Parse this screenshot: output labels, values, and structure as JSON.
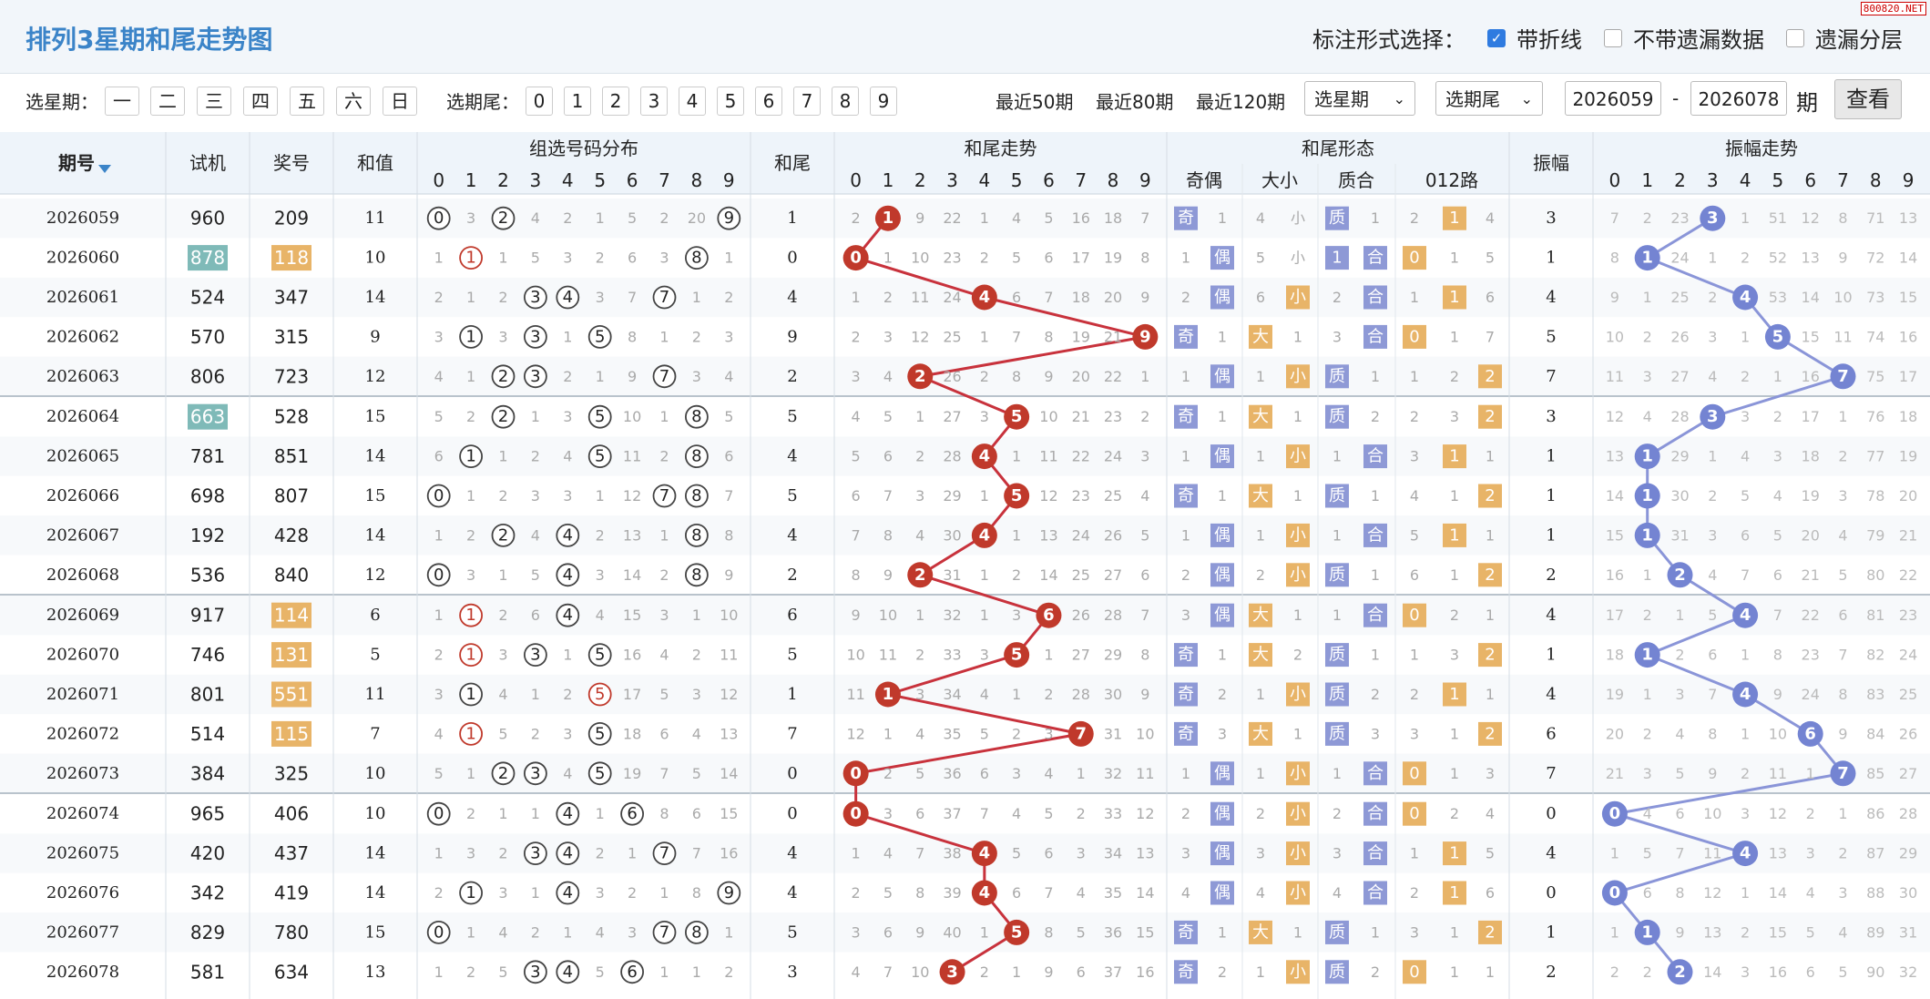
{
  "title": "排列3星期和尾走势图",
  "options": {
    "label": "标注形式选择：",
    "items": [
      {
        "label": "带折线",
        "checked": true
      },
      {
        "label": "不带遗漏数据",
        "checked": false
      },
      {
        "label": "遗漏分层",
        "checked": false
      }
    ]
  },
  "watermark": "800820.NET",
  "filter": {
    "week_label": "选星期：",
    "week_days": [
      "一",
      "二",
      "三",
      "四",
      "五",
      "六",
      "日"
    ],
    "tail_label": "选期尾：",
    "tails": [
      "0",
      "1",
      "2",
      "3",
      "4",
      "5",
      "6",
      "7",
      "8",
      "9"
    ],
    "recent": [
      "最近50期",
      "最近80期",
      "最近120期"
    ],
    "select_week": "选星期",
    "select_tail": "选期尾",
    "from": "2026059",
    "dash": "-",
    "to": "2026078",
    "period": "期",
    "view": "查看"
  },
  "columns": {
    "issue": "期号",
    "sort_icon": "triangle-down-icon",
    "trial": "试机",
    "prize": "奖号",
    "sum": "和值",
    "dist": "组选号码分布",
    "tail": "和尾",
    "trend": "和尾走势",
    "form": "和尾形态",
    "parity": "奇偶",
    "size": "大小",
    "prime": "质合",
    "route": "012路",
    "amp": "振幅",
    "amp_trend": "振幅走势",
    "digits": [
      "0",
      "1",
      "2",
      "3",
      "4",
      "5",
      "6",
      "7",
      "8",
      "9"
    ]
  },
  "colors": {
    "header_bg": "#eef4fa",
    "row_alt": "#f7f9fb",
    "trend_ball": "#c0392b",
    "trend_line": "#c8323c",
    "amp_ball": "#7484d2",
    "amp_line": "#8a95d8",
    "form_blue": "#8e99d6",
    "form_orange": "#e8b468",
    "highlight_teal": "#7fbab8",
    "highlight_orange": "#e8b468",
    "dist_red": "#c0392b"
  },
  "rows": [
    {
      "issue": "2026059",
      "trial": "960",
      "prize": "209",
      "sum": "11",
      "dist": [
        "0",
        "3",
        "2",
        "4",
        "2",
        "1",
        "5",
        "2",
        "20",
        "9"
      ],
      "tail": "1",
      "trend": [
        "2",
        "1",
        "9",
        "22",
        "1",
        "4",
        "5",
        "16",
        "18",
        "7"
      ],
      "form": [
        "奇",
        "1",
        "4",
        "小",
        "质",
        "1",
        "2",
        "1",
        "4"
      ],
      "amp": "3",
      "amp_trend": [
        "7",
        "2",
        "23",
        "3",
        "1",
        "51",
        "12",
        "8",
        "71",
        "13"
      ]
    },
    {
      "issue": "2026060",
      "trial": "878",
      "prize": "118",
      "sum": "10",
      "dist": [
        "1",
        "1",
        "1",
        "5",
        "3",
        "2",
        "6",
        "3",
        "8",
        "1"
      ],
      "tail": "0",
      "trend": [
        "0",
        "1",
        "10",
        "23",
        "2",
        "5",
        "6",
        "17",
        "19",
        "8"
      ],
      "form": [
        "1",
        "偶",
        "5",
        "小",
        "1",
        "合",
        "0",
        "1",
        "5"
      ],
      "amp": "1",
      "amp_trend": [
        "8",
        "1",
        "24",
        "1",
        "2",
        "52",
        "13",
        "9",
        "72",
        "14"
      ]
    },
    {
      "issue": "2026061",
      "trial": "524",
      "prize": "347",
      "sum": "14",
      "dist": [
        "2",
        "1",
        "2",
        "3",
        "4",
        "3",
        "7",
        "7",
        "1",
        "2"
      ],
      "tail": "4",
      "trend": [
        "1",
        "2",
        "11",
        "24",
        "4",
        "6",
        "7",
        "18",
        "20",
        "9"
      ],
      "form": [
        "2",
        "偶",
        "6",
        "小",
        "2",
        "合",
        "1",
        "1",
        "6"
      ],
      "amp": "4",
      "amp_trend": [
        "9",
        "1",
        "25",
        "2",
        "4",
        "53",
        "14",
        "10",
        "73",
        "15"
      ]
    },
    {
      "issue": "2026062",
      "trial": "570",
      "prize": "315",
      "sum": "9",
      "dist": [
        "3",
        "1",
        "3",
        "3",
        "1",
        "5",
        "8",
        "1",
        "2",
        "3"
      ],
      "tail": "9",
      "trend": [
        "2",
        "3",
        "12",
        "25",
        "1",
        "7",
        "8",
        "19",
        "21",
        "9"
      ],
      "form": [
        "奇",
        "1",
        "大",
        "1",
        "3",
        "合",
        "0",
        "1",
        "7"
      ],
      "amp": "5",
      "amp_trend": [
        "10",
        "2",
        "26",
        "3",
        "1",
        "5",
        "15",
        "11",
        "74",
        "16"
      ]
    },
    {
      "issue": "2026063",
      "trial": "806",
      "prize": "723",
      "sum": "12",
      "dist": [
        "4",
        "1",
        "2",
        "3",
        "2",
        "1",
        "9",
        "7",
        "3",
        "4"
      ],
      "tail": "2",
      "trend": [
        "3",
        "4",
        "2",
        "26",
        "2",
        "8",
        "9",
        "20",
        "22",
        "1"
      ],
      "form": [
        "1",
        "偶",
        "1",
        "小",
        "质",
        "1",
        "1",
        "2",
        "2"
      ],
      "amp": "7",
      "amp_trend": [
        "11",
        "3",
        "27",
        "4",
        "2",
        "1",
        "16",
        "7",
        "75",
        "17"
      ]
    },
    {
      "issue": "2026064",
      "trial": "663",
      "prize": "528",
      "sum": "15",
      "dist": [
        "5",
        "2",
        "2",
        "1",
        "3",
        "5",
        "10",
        "1",
        "8",
        "5"
      ],
      "tail": "5",
      "trend": [
        "4",
        "5",
        "1",
        "27",
        "3",
        "5",
        "10",
        "21",
        "23",
        "2"
      ],
      "form": [
        "奇",
        "1",
        "大",
        "1",
        "质",
        "2",
        "2",
        "3",
        "2"
      ],
      "amp": "3",
      "amp_trend": [
        "12",
        "4",
        "28",
        "3",
        "3",
        "2",
        "17",
        "1",
        "76",
        "18"
      ]
    },
    {
      "issue": "2026065",
      "trial": "781",
      "prize": "851",
      "sum": "14",
      "dist": [
        "6",
        "1",
        "1",
        "2",
        "4",
        "5",
        "11",
        "2",
        "8",
        "6"
      ],
      "tail": "4",
      "trend": [
        "5",
        "6",
        "2",
        "28",
        "4",
        "1",
        "11",
        "22",
        "24",
        "3"
      ],
      "form": [
        "1",
        "偶",
        "1",
        "小",
        "1",
        "合",
        "3",
        "1",
        "1"
      ],
      "amp": "1",
      "amp_trend": [
        "13",
        "1",
        "29",
        "1",
        "4",
        "3",
        "18",
        "2",
        "77",
        "19"
      ]
    },
    {
      "issue": "2026066",
      "trial": "698",
      "prize": "807",
      "sum": "15",
      "dist": [
        "0",
        "1",
        "2",
        "3",
        "3",
        "1",
        "12",
        "7",
        "8",
        "7"
      ],
      "tail": "5",
      "trend": [
        "6",
        "7",
        "3",
        "29",
        "1",
        "5",
        "12",
        "23",
        "25",
        "4"
      ],
      "form": [
        "奇",
        "1",
        "大",
        "1",
        "质",
        "1",
        "4",
        "1",
        "2"
      ],
      "amp": "1",
      "amp_trend": [
        "14",
        "1",
        "30",
        "2",
        "5",
        "4",
        "19",
        "3",
        "78",
        "20"
      ]
    },
    {
      "issue": "2026067",
      "trial": "192",
      "prize": "428",
      "sum": "14",
      "dist": [
        "1",
        "2",
        "2",
        "4",
        "4",
        "2",
        "13",
        "1",
        "8",
        "8"
      ],
      "tail": "4",
      "trend": [
        "7",
        "8",
        "4",
        "30",
        "4",
        "1",
        "13",
        "24",
        "26",
        "5"
      ],
      "form": [
        "1",
        "偶",
        "1",
        "小",
        "1",
        "合",
        "5",
        "1",
        "1"
      ],
      "amp": "1",
      "amp_trend": [
        "15",
        "1",
        "31",
        "3",
        "6",
        "5",
        "20",
        "4",
        "79",
        "21"
      ]
    },
    {
      "issue": "2026068",
      "trial": "536",
      "prize": "840",
      "sum": "12",
      "dist": [
        "0",
        "3",
        "1",
        "5",
        "4",
        "3",
        "14",
        "2",
        "8",
        "9"
      ],
      "tail": "2",
      "trend": [
        "8",
        "9",
        "2",
        "31",
        "1",
        "2",
        "14",
        "25",
        "27",
        "6"
      ],
      "form": [
        "2",
        "偶",
        "2",
        "小",
        "质",
        "1",
        "6",
        "1",
        "2"
      ],
      "amp": "2",
      "amp_trend": [
        "16",
        "1",
        "2",
        "4",
        "7",
        "6",
        "21",
        "5",
        "80",
        "22"
      ]
    },
    {
      "issue": "2026069",
      "trial": "917",
      "prize": "114",
      "sum": "6",
      "dist": [
        "1",
        "1",
        "2",
        "6",
        "4",
        "4",
        "15",
        "3",
        "1",
        "10"
      ],
      "tail": "6",
      "trend": [
        "9",
        "10",
        "1",
        "32",
        "1",
        "3",
        "6",
        "26",
        "28",
        "7"
      ],
      "form": [
        "3",
        "偶",
        "大",
        "1",
        "1",
        "合",
        "0",
        "2",
        "1"
      ],
      "amp": "4",
      "amp_trend": [
        "17",
        "2",
        "1",
        "5",
        "4",
        "7",
        "22",
        "6",
        "81",
        "23"
      ]
    },
    {
      "issue": "2026070",
      "trial": "746",
      "prize": "131",
      "sum": "5",
      "dist": [
        "2",
        "1",
        "3",
        "3",
        "1",
        "5",
        "16",
        "4",
        "2",
        "11"
      ],
      "tail": "5",
      "trend": [
        "10",
        "11",
        "2",
        "33",
        "3",
        "5",
        "1",
        "27",
        "29",
        "8"
      ],
      "form": [
        "奇",
        "1",
        "大",
        "2",
        "质",
        "1",
        "1",
        "3",
        "2"
      ],
      "amp": "1",
      "amp_trend": [
        "18",
        "1",
        "2",
        "6",
        "1",
        "8",
        "23",
        "7",
        "82",
        "24"
      ]
    },
    {
      "issue": "2026071",
      "trial": "801",
      "prize": "551",
      "sum": "11",
      "dist": [
        "3",
        "1",
        "4",
        "1",
        "2",
        "5",
        "17",
        "5",
        "3",
        "12"
      ],
      "tail": "1",
      "trend": [
        "11",
        "1",
        "3",
        "34",
        "4",
        "1",
        "2",
        "28",
        "30",
        "9"
      ],
      "form": [
        "奇",
        "2",
        "1",
        "小",
        "质",
        "2",
        "2",
        "1",
        "1"
      ],
      "amp": "4",
      "amp_trend": [
        "19",
        "1",
        "3",
        "7",
        "4",
        "9",
        "24",
        "8",
        "83",
        "25"
      ]
    },
    {
      "issue": "2026072",
      "trial": "514",
      "prize": "115",
      "sum": "7",
      "dist": [
        "4",
        "1",
        "5",
        "2",
        "3",
        "5",
        "18",
        "6",
        "4",
        "13"
      ],
      "tail": "7",
      "trend": [
        "12",
        "1",
        "4",
        "35",
        "5",
        "2",
        "3",
        "7",
        "31",
        "10"
      ],
      "form": [
        "奇",
        "3",
        "大",
        "1",
        "质",
        "3",
        "3",
        "1",
        "2"
      ],
      "amp": "6",
      "amp_trend": [
        "20",
        "2",
        "4",
        "8",
        "1",
        "10",
        "6",
        "9",
        "84",
        "26"
      ]
    },
    {
      "issue": "2026073",
      "trial": "384",
      "prize": "325",
      "sum": "10",
      "dist": [
        "5",
        "1",
        "2",
        "3",
        "4",
        "5",
        "19",
        "7",
        "5",
        "14"
      ],
      "tail": "0",
      "trend": [
        "0",
        "2",
        "5",
        "36",
        "6",
        "3",
        "4",
        "1",
        "32",
        "11"
      ],
      "form": [
        "1",
        "偶",
        "1",
        "小",
        "1",
        "合",
        "0",
        "1",
        "3"
      ],
      "amp": "7",
      "amp_trend": [
        "21",
        "3",
        "5",
        "9",
        "2",
        "11",
        "1",
        "7",
        "85",
        "27"
      ]
    },
    {
      "issue": "2026074",
      "trial": "965",
      "prize": "406",
      "sum": "10",
      "dist": [
        "0",
        "2",
        "1",
        "1",
        "4",
        "1",
        "6",
        "8",
        "6",
        "15"
      ],
      "tail": "0",
      "trend": [
        "0",
        "3",
        "6",
        "37",
        "7",
        "4",
        "5",
        "2",
        "33",
        "12"
      ],
      "form": [
        "2",
        "偶",
        "2",
        "小",
        "2",
        "合",
        "0",
        "2",
        "4"
      ],
      "amp": "0",
      "amp_trend": [
        "0",
        "4",
        "6",
        "10",
        "3",
        "12",
        "2",
        "1",
        "86",
        "28"
      ]
    },
    {
      "issue": "2026075",
      "trial": "420",
      "prize": "437",
      "sum": "14",
      "dist": [
        "1",
        "3",
        "2",
        "3",
        "4",
        "2",
        "1",
        "7",
        "7",
        "16"
      ],
      "tail": "4",
      "trend": [
        "1",
        "4",
        "7",
        "38",
        "4",
        "5",
        "6",
        "3",
        "34",
        "13"
      ],
      "form": [
        "3",
        "偶",
        "3",
        "小",
        "3",
        "合",
        "1",
        "1",
        "5"
      ],
      "amp": "4",
      "amp_trend": [
        "1",
        "5",
        "7",
        "11",
        "4",
        "13",
        "3",
        "2",
        "87",
        "29"
      ]
    },
    {
      "issue": "2026076",
      "trial": "342",
      "prize": "419",
      "sum": "14",
      "dist": [
        "2",
        "1",
        "3",
        "1",
        "4",
        "3",
        "2",
        "1",
        "8",
        "9"
      ],
      "tail": "4",
      "trend": [
        "2",
        "5",
        "8",
        "39",
        "4",
        "6",
        "7",
        "4",
        "35",
        "14"
      ],
      "form": [
        "4",
        "偶",
        "4",
        "小",
        "4",
        "合",
        "2",
        "1",
        "6"
      ],
      "amp": "0",
      "amp_trend": [
        "0",
        "6",
        "8",
        "12",
        "1",
        "14",
        "4",
        "3",
        "88",
        "30"
      ]
    },
    {
      "issue": "2026077",
      "trial": "829",
      "prize": "780",
      "sum": "15",
      "dist": [
        "0",
        "1",
        "4",
        "2",
        "1",
        "4",
        "3",
        "7",
        "8",
        "1"
      ],
      "tail": "5",
      "trend": [
        "3",
        "6",
        "9",
        "40",
        "1",
        "5",
        "8",
        "5",
        "36",
        "15"
      ],
      "form": [
        "奇",
        "1",
        "大",
        "1",
        "质",
        "1",
        "3",
        "1",
        "2"
      ],
      "amp": "1",
      "amp_trend": [
        "1",
        "1",
        "9",
        "13",
        "2",
        "15",
        "5",
        "4",
        "89",
        "31"
      ]
    },
    {
      "issue": "2026078",
      "trial": "581",
      "prize": "634",
      "sum": "13",
      "dist": [
        "1",
        "2",
        "5",
        "3",
        "4",
        "5",
        "6",
        "1",
        "1",
        "2"
      ],
      "tail": "3",
      "trend": [
        "4",
        "7",
        "10",
        "3",
        "2",
        "1",
        "9",
        "6",
        "37",
        "16"
      ],
      "form": [
        "奇",
        "2",
        "1",
        "小",
        "质",
        "2",
        "0",
        "1",
        "1"
      ],
      "amp": "2",
      "amp_trend": [
        "2",
        "2",
        "2",
        "14",
        "3",
        "16",
        "6",
        "5",
        "90",
        "32"
      ]
    }
  ],
  "markers": {
    "dist_circled": [
      [
        0,
        2,
        9
      ],
      [
        1,
        8
      ],
      [
        3,
        4,
        7
      ],
      [
        1,
        3,
        5
      ],
      [
        2,
        3,
        7
      ],
      [
        2,
        5,
        8
      ],
      [
        1,
        5,
        8
      ],
      [
        0,
        7,
        8
      ],
      [
        2,
        4,
        8
      ],
      [
        0,
        4,
        8
      ],
      [
        1,
        4
      ],
      [
        1,
        3,
        5
      ],
      [
        1,
        5
      ],
      [
        1,
        5
      ],
      [
        2,
        3,
        5
      ],
      [
        0,
        4,
        6
      ],
      [
        3,
        4,
        7
      ],
      [
        1,
        4,
        9
      ],
      [
        0,
        7,
        8
      ],
      [
        3,
        4,
        6
      ]
    ],
    "dist_red": [
      [],
      [
        1
      ],
      [],
      [],
      [],
      [],
      [],
      [],
      [],
      [],
      [
        1
      ],
      [
        1
      ],
      [
        5
      ],
      [
        1
      ],
      [],
      [],
      [],
      [],
      [],
      []
    ],
    "form_pos": [
      [
        0,
        4,
        7
      ],
      [
        1,
        4,
        5,
        6
      ],
      [
        1,
        3,
        5,
        7
      ],
      [
        0,
        2,
        5,
        6
      ],
      [
        1,
        3,
        4,
        8
      ],
      [
        0,
        2,
        4,
        8
      ],
      [
        1,
        3,
        5,
        7
      ],
      [
        0,
        2,
        4,
        8
      ],
      [
        1,
        3,
        5,
        7
      ],
      [
        1,
        3,
        4,
        8
      ],
      [
        1,
        2,
        5,
        6
      ],
      [
        0,
        2,
        4,
        8
      ],
      [
        0,
        3,
        4,
        7
      ],
      [
        0,
        2,
        4,
        8
      ],
      [
        1,
        3,
        5,
        6
      ],
      [
        1,
        3,
        5,
        6
      ],
      [
        1,
        3,
        5,
        7
      ],
      [
        1,
        3,
        5,
        7
      ],
      [
        0,
        2,
        4,
        8
      ],
      [
        0,
        3,
        4,
        6
      ]
    ],
    "trial_hl": {
      "1": "teal",
      "5": "teal"
    },
    "prize_hl": {
      "1": "orange",
      "10": "orange",
      "11": "orange",
      "12": "orange",
      "13": "orange"
    }
  }
}
